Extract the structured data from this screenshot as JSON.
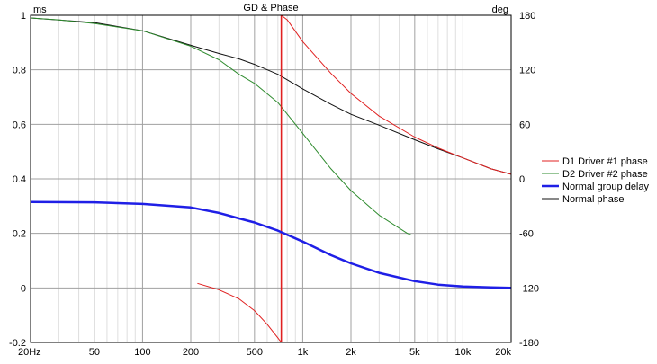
{
  "chart_data": {
    "type": "line",
    "title": "GD & Phase",
    "x_scale": "log",
    "xlim": [
      20,
      20000
    ],
    "x_ticks": [
      {
        "v": 20,
        "label": "20Hz"
      },
      {
        "v": 50,
        "label": "50"
      },
      {
        "v": 100,
        "label": "100"
      },
      {
        "v": 200,
        "label": "200"
      },
      {
        "v": 500,
        "label": "500"
      },
      {
        "v": 1000,
        "label": "1k"
      },
      {
        "v": 2000,
        "label": "2k"
      },
      {
        "v": 5000,
        "label": "5k"
      },
      {
        "v": 10000,
        "label": "10k"
      },
      {
        "v": 20000,
        "label": "20k"
      }
    ],
    "y_left": {
      "unit": "ms",
      "lim": [
        -0.2,
        1
      ],
      "ticks": [
        -0.2,
        0,
        0.2,
        0.4,
        0.6,
        0.8,
        1
      ],
      "tick_labels": [
        "-0.2",
        "0",
        "0.2",
        "0.4",
        "0.6",
        "0.8",
        "1"
      ]
    },
    "y_right": {
      "unit": "deg",
      "lim": [
        -180,
        180
      ],
      "ticks": [
        -180,
        -120,
        -60,
        0,
        60,
        120,
        180
      ],
      "tick_labels": [
        "-180",
        "-120",
        "-60",
        "0",
        "60",
        "120",
        "180"
      ]
    },
    "grid": true,
    "legend_position": "right",
    "series": [
      {
        "name": "D1 Driver #1 phase",
        "color": "#e02020",
        "width": 1,
        "axis": "right",
        "segments": [
          [
            [
              220,
              -115
            ],
            [
              300,
              -122
            ],
            [
              400,
              -132
            ],
            [
              500,
              -145
            ],
            [
              600,
              -160
            ],
            [
              700,
              -175
            ],
            [
              735,
              -180
            ]
          ],
          [
            [
              735,
              180
            ],
            [
              800,
              175
            ],
            [
              1000,
              151
            ],
            [
              1500,
              116
            ],
            [
              2000,
              94
            ],
            [
              3000,
              69
            ],
            [
              5000,
              46
            ],
            [
              7000,
              34
            ],
            [
              10000,
              23
            ],
            [
              15000,
              11
            ],
            [
              20000,
              5
            ]
          ]
        ],
        "vertical_line": {
          "x": 735,
          "y": [
            -180,
            180
          ]
        }
      },
      {
        "name": "D2 Driver #2 phase",
        "color": "#2e8b2e",
        "width": 1,
        "axis": "right",
        "segments": [
          [
            [
              20,
              177
            ],
            [
              30,
              175
            ],
            [
              50,
              171
            ],
            [
              100,
              163
            ],
            [
              200,
              146
            ],
            [
              300,
              131
            ],
            [
              400,
              115
            ],
            [
              500,
              105
            ],
            [
              700,
              84
            ],
            [
              1000,
              50
            ],
            [
              1500,
              11
            ],
            [
              2000,
              -13
            ],
            [
              3000,
              -40
            ],
            [
              4500,
              -60
            ],
            [
              4800,
              -62
            ]
          ]
        ]
      },
      {
        "name": "Normal group delay",
        "color": "#1f1fe6",
        "width": 2.5,
        "axis": "left",
        "segments": [
          [
            [
              20,
              0.315
            ],
            [
              50,
              0.314
            ],
            [
              100,
              0.308
            ],
            [
              200,
              0.295
            ],
            [
              300,
              0.275
            ],
            [
              400,
              0.255
            ],
            [
              500,
              0.24
            ],
            [
              700,
              0.21
            ],
            [
              1000,
              0.17
            ],
            [
              1500,
              0.12
            ],
            [
              2000,
              0.09
            ],
            [
              3000,
              0.055
            ],
            [
              5000,
              0.025
            ],
            [
              7000,
              0.012
            ],
            [
              10000,
              0.005
            ],
            [
              15000,
              0.002
            ],
            [
              20000,
              0.0
            ]
          ]
        ]
      },
      {
        "name": "Normal phase",
        "color": "#111111",
        "width": 1,
        "axis": "right",
        "segments": [
          [
            [
              20,
              177
            ],
            [
              50,
              172
            ],
            [
              100,
              163
            ],
            [
              200,
              147
            ],
            [
              300,
              138
            ],
            [
              400,
              132
            ],
            [
              500,
              126
            ],
            [
              700,
              115
            ],
            [
              1000,
              99
            ],
            [
              1500,
              82
            ],
            [
              2000,
              71
            ],
            [
              3000,
              59
            ],
            [
              5000,
              43
            ],
            [
              7000,
              33
            ],
            [
              10000,
              23
            ],
            [
              15000,
              11
            ],
            [
              20000,
              5
            ]
          ]
        ]
      }
    ]
  }
}
